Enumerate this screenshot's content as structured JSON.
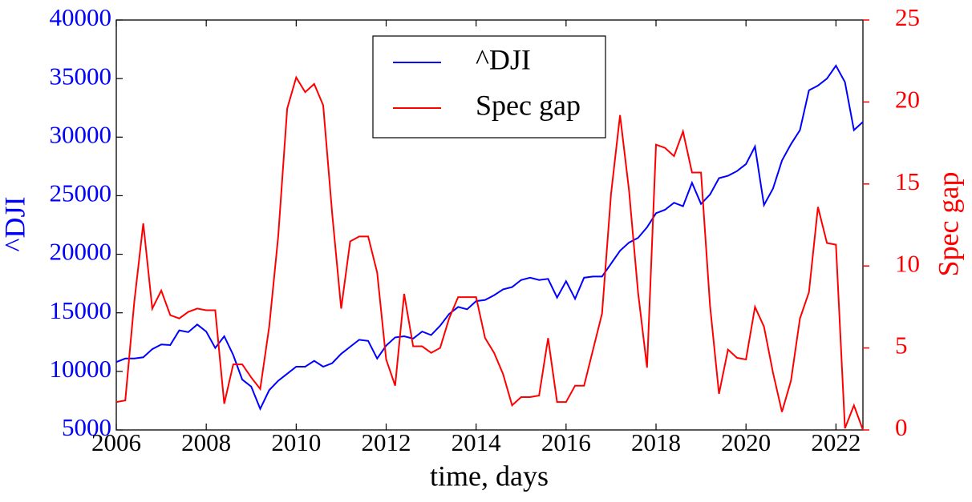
{
  "chart_data": {
    "type": "line",
    "xlabel": "time, days",
    "ylabel": "^DJI",
    "y2label": "Spec gap",
    "x": [
      2006.0,
      2006.2,
      2006.4,
      2006.6,
      2006.8,
      2007.0,
      2007.2,
      2007.4,
      2007.6,
      2007.8,
      2008.0,
      2008.2,
      2008.4,
      2008.6,
      2008.8,
      2009.0,
      2009.2,
      2009.4,
      2009.6,
      2009.8,
      2010.0,
      2010.2,
      2010.4,
      2010.6,
      2010.8,
      2011.0,
      2011.2,
      2011.4,
      2011.6,
      2011.8,
      2012.0,
      2012.2,
      2012.4,
      2012.6,
      2012.8,
      2013.0,
      2013.2,
      2013.4,
      2013.6,
      2013.8,
      2014.0,
      2014.2,
      2014.4,
      2014.6,
      2014.8,
      2015.0,
      2015.2,
      2015.4,
      2015.6,
      2015.8,
      2016.0,
      2016.2,
      2016.4,
      2016.6,
      2016.8,
      2017.0,
      2017.2,
      2017.4,
      2017.6,
      2017.8,
      2018.0,
      2018.2,
      2018.4,
      2018.6,
      2018.8,
      2019.0,
      2019.2,
      2019.4,
      2019.6,
      2019.8,
      2020.0,
      2020.2,
      2020.4,
      2020.6,
      2020.8,
      2021.0,
      2021.2,
      2021.4,
      2021.6,
      2021.8,
      2022.0,
      2022.2,
      2022.4,
      2022.6
    ],
    "series": [
      {
        "name": "^DJI",
        "color": "#0000ff",
        "axis": "y",
        "values": [
          10800,
          11100,
          11100,
          11200,
          11900,
          12300,
          12250,
          13500,
          13350,
          14000,
          13400,
          12000,
          13000,
          11400,
          9300,
          8700,
          6800,
          8400,
          9200,
          9800,
          10400,
          10400,
          10900,
          10400,
          10700,
          11500,
          12100,
          12700,
          12600,
          11100,
          12200,
          12900,
          13000,
          12800,
          13400,
          13100,
          13900,
          14900,
          15500,
          15300,
          16000,
          16100,
          16500,
          17000,
          17200,
          17800,
          18000,
          17800,
          17900,
          16300,
          17700,
          16200,
          18000,
          18100,
          18100,
          19200,
          20300,
          21000,
          21400,
          22300,
          23500,
          23800,
          24400,
          24100,
          26100,
          24300,
          25100,
          26500,
          26700,
          27100,
          27700,
          29200,
          24200,
          25600,
          28000,
          29400,
          30600,
          34000,
          34400,
          35000,
          36100,
          34700,
          30600,
          31300
        ]
      },
      {
        "name": "Spec gap",
        "color": "#ff0000",
        "axis": "y2",
        "values": [
          1.7,
          1.8,
          7.8,
          12.6,
          7.4,
          8.5,
          7.0,
          6.8,
          7.2,
          7.4,
          7.3,
          7.3,
          1.6,
          4.0,
          4.0,
          3.2,
          2.5,
          6.3,
          11.8,
          19.6,
          21.5,
          20.6,
          21.1,
          19.8,
          13.2,
          7.4,
          11.5,
          11.8,
          11.8,
          9.6,
          4.3,
          2.7,
          8.3,
          5.1,
          5.1,
          4.7,
          5.0,
          6.8,
          8.1,
          8.1,
          8.1,
          5.6,
          4.7,
          3.4,
          1.5,
          2.0,
          2.0,
          2.1,
          5.6,
          1.7,
          1.7,
          2.7,
          2.7,
          4.9,
          7.1,
          14.4,
          19.2,
          14.6,
          8.4,
          3.8,
          17.4,
          17.2,
          16.7,
          18.2,
          15.7,
          15.7,
          7.6,
          2.2,
          4.9,
          4.4,
          4.3,
          7.5,
          6.3,
          3.5,
          1.1,
          3.0,
          6.8,
          8.4,
          13.6,
          11.4,
          11.3,
          0.1,
          1.5,
          0.0
        ]
      }
    ],
    "xlim": [
      2006,
      2022.6
    ],
    "xticks": [
      2006,
      2008,
      2010,
      2012,
      2014,
      2016,
      2018,
      2020,
      2022
    ],
    "ylim": [
      5000,
      40000
    ],
    "yticks": [
      5000,
      10000,
      15000,
      20000,
      25000,
      30000,
      35000,
      40000
    ],
    "y2lim": [
      0,
      25
    ],
    "y2ticks": [
      0,
      5,
      10,
      15,
      20,
      25
    ],
    "grid": false,
    "legend": "upper center"
  }
}
